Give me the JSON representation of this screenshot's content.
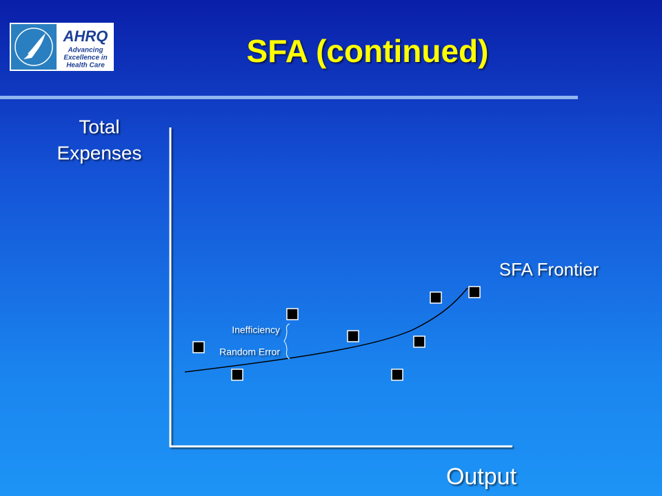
{
  "header": {
    "title": "SFA (continued)",
    "logo": {
      "acronym": "AHRQ",
      "tagline": [
        "Advancing",
        "Excellence in",
        "Health Care"
      ]
    }
  },
  "diagram": {
    "y_axis_label": [
      "Total",
      "Expenses"
    ],
    "x_axis_label": "Output",
    "curve_label": "SFA Frontier",
    "annotations": [
      "Inefficiency",
      "Random Error"
    ]
  }
}
